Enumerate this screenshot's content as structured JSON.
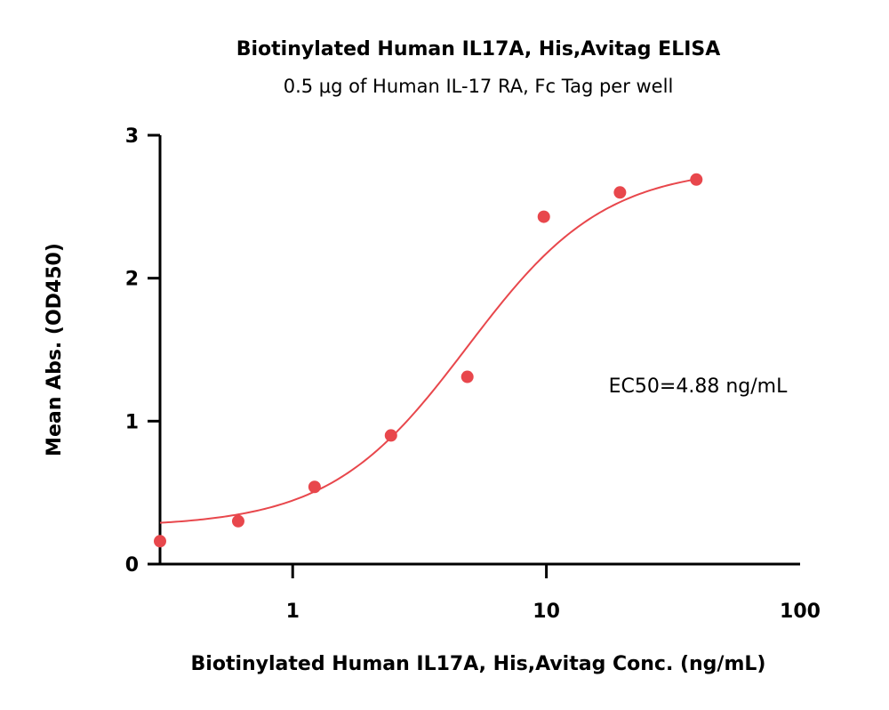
{
  "chart_data": {
    "type": "scatter",
    "title": "Biotinylated Human IL17A, His,Avitag ELISA",
    "subtitle": "0.5 μg of Human IL-17 RA, Fc Tag per well",
    "xlabel": "Biotinylated Human IL17A, His,Avitag Conc. (ng/mL)",
    "ylabel": "Mean Abs. (OD450)",
    "x_scale": "log",
    "xlim": [
      0.3,
      100
    ],
    "ylim": [
      0,
      3
    ],
    "x_ticks": [
      1,
      10,
      100
    ],
    "x_tick_labels": [
      "1",
      "10",
      "100"
    ],
    "y_ticks": [
      0,
      1,
      2,
      3
    ],
    "y_tick_labels": [
      "0",
      "1",
      "2",
      "3"
    ],
    "grid": false,
    "series": [
      {
        "x": [
          0.3,
          0.61,
          1.22,
          2.44,
          4.88,
          9.77,
          19.5,
          39
        ],
        "y": [
          0.16,
          0.3,
          0.54,
          0.9,
          1.31,
          2.43,
          2.6,
          2.69
        ],
        "color": "#e8474c"
      }
    ],
    "fit_curve": {
      "model": "4PL",
      "bottom": 0.26,
      "top": 2.78,
      "ec50": 4.88,
      "hill": 1.6,
      "color": "#e8474c"
    },
    "annotations": [
      {
        "text": "EC50=4.88 ng/mL"
      }
    ]
  }
}
